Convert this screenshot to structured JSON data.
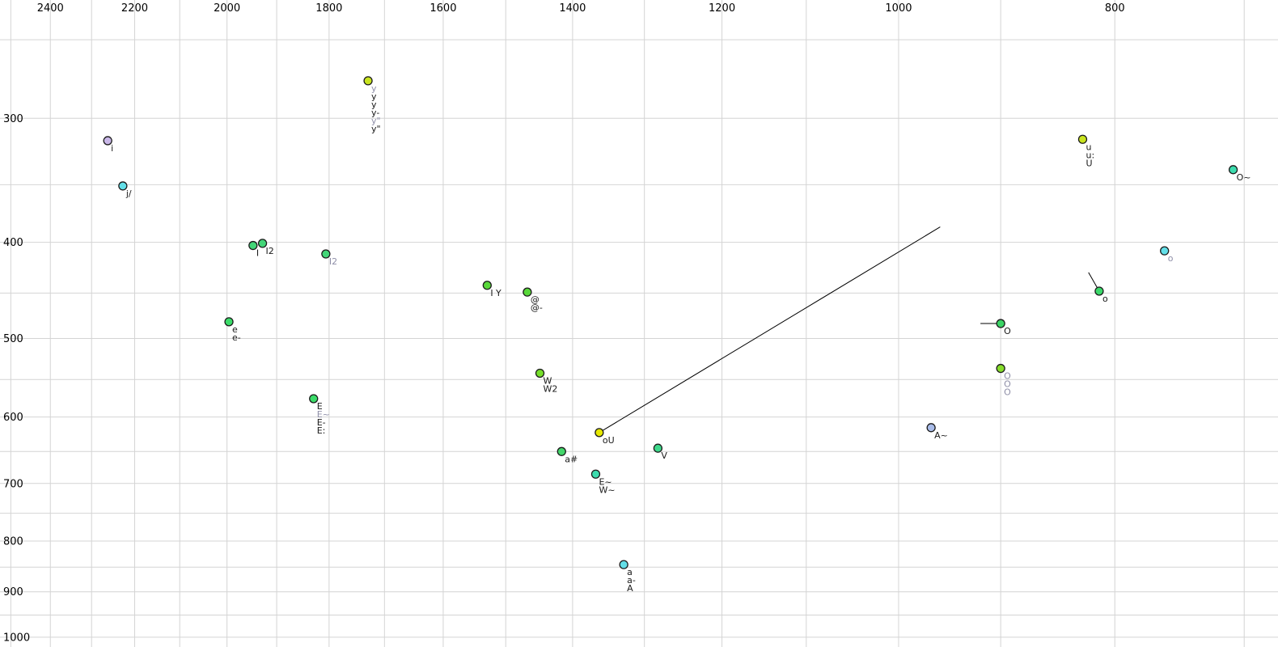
{
  "chart_data": {
    "type": "scatter",
    "title": "",
    "xlabel": "",
    "ylabel": "",
    "x_axis": {
      "unit": "Hz",
      "scale": "log",
      "reversed": true,
      "tick_labels": [
        "2400",
        "2200",
        "2000",
        "1800",
        "1600",
        "1400",
        "1200",
        "1000",
        "800"
      ],
      "tick_values": [
        2400,
        2200,
        2000,
        1800,
        1600,
        1400,
        1200,
        1000,
        800
      ],
      "grid_step": 100,
      "grid_from": 2500,
      "grid_to": 700,
      "left_hz": 2528,
      "right_hz": 676
    },
    "y_axis": {
      "unit": "Hz",
      "scale": "log",
      "reversed": false,
      "tick_labels": [
        "300",
        "400",
        "500",
        "600",
        "700",
        "800",
        "900",
        "1000"
      ],
      "tick_values": [
        300,
        400,
        500,
        600,
        700,
        800,
        900,
        1000
      ],
      "grid_step": 50,
      "grid_from": 250,
      "grid_to": 1000,
      "top_hz": 228,
      "bottom_hz": 1023
    },
    "grid": true,
    "legend": "none",
    "colors": {
      "grid_line": "#d4d4d4",
      "tick_text": "#000000",
      "label_text": "#1a1a1a",
      "label_text_gray": "#8f8fa8",
      "point_stroke": "#1c1c1c",
      "segment_line": "#000000"
    },
    "points": [
      {
        "f2": 2262,
        "f1": 316,
        "color": "#c9b7e8",
        "labels": [
          {
            "text": "i",
            "gray": false
          }
        ]
      },
      {
        "f2": 2227,
        "f1": 351,
        "color": "#63dfe8",
        "labels": [
          {
            "text": "j/",
            "gray": false
          }
        ]
      },
      {
        "f2": 1729,
        "f1": 275,
        "color": "#c9e41f",
        "labels": [
          {
            "text": "y",
            "gray": true
          },
          {
            "text": "y",
            "gray": false
          },
          {
            "text": "y",
            "gray": false
          },
          {
            "text": "y-",
            "gray": false
          },
          {
            "text": "y\"",
            "gray": true
          },
          {
            "text": "y\"",
            "gray": false
          }
        ]
      },
      {
        "f2": 1947,
        "f1": 403,
        "color": "#43d678",
        "labels": [
          {
            "text": "I",
            "gray": false
          }
        ]
      },
      {
        "f2": 1928,
        "f1": 401,
        "color": "#43d678",
        "labels": [
          {
            "text": "I2",
            "gray": false
          }
        ]
      },
      {
        "f2": 1806,
        "f1": 411,
        "color": "#43d678",
        "labels": [
          {
            "text": "I2",
            "gray": true
          }
        ]
      },
      {
        "f2": 1996,
        "f1": 481,
        "color": "#3bdc69",
        "labels": [
          {
            "text": "e",
            "gray": false
          },
          {
            "text": "e-",
            "gray": false
          }
        ]
      },
      {
        "f2": 1829,
        "f1": 575,
        "color": "#3bdc69",
        "labels": [
          {
            "text": "E",
            "gray": false
          },
          {
            "text": "E~",
            "gray": true
          },
          {
            "text": "E-",
            "gray": false
          },
          {
            "text": "E:",
            "gray": false
          }
        ]
      },
      {
        "f2": 1529,
        "f1": 442,
        "color": "#58d83a",
        "inline": true,
        "labels": [
          {
            "text": "I",
            "gray": false
          },
          {
            "text": "Y",
            "gray": false
          }
        ]
      },
      {
        "f2": 1467,
        "f1": 449,
        "color": "#58d83a",
        "labels": [
          {
            "text": "@",
            "gray": false
          },
          {
            "text": "@-",
            "gray": false
          }
        ]
      },
      {
        "f2": 1448,
        "f1": 542,
        "color": "#76df2b",
        "labels": [
          {
            "text": "W",
            "gray": false
          },
          {
            "text": "W2",
            "gray": false
          }
        ]
      },
      {
        "f2": 1416,
        "f1": 650,
        "color": "#43d66b",
        "labels": [
          {
            "text": "a#",
            "gray": false
          }
        ]
      },
      {
        "f2": 1362,
        "f1": 622,
        "color": "#e6e800",
        "labels": [
          {
            "text": "oU",
            "gray": false
          }
        ]
      },
      {
        "f2": 1282,
        "f1": 645,
        "color": "#3ed98b",
        "labels": [
          {
            "text": "V",
            "gray": false
          }
        ]
      },
      {
        "f2": 1367,
        "f1": 685,
        "color": "#3cdcae",
        "labels": [
          {
            "text": "E~",
            "gray": false
          },
          {
            "text": "W~",
            "gray": false
          }
        ]
      },
      {
        "f2": 1328,
        "f1": 845,
        "color": "#63dfe8",
        "labels": [
          {
            "text": "a",
            "gray": false
          },
          {
            "text": "a-",
            "gray": false
          },
          {
            "text": "A",
            "gray": false
          }
        ]
      },
      {
        "f2": 967,
        "f1": 615,
        "color": "#a9bce9",
        "labels": [
          {
            "text": "A~",
            "gray": false
          }
        ]
      },
      {
        "f2": 827,
        "f1": 315,
        "color": "#c9e41f",
        "labels": [
          {
            "text": "u",
            "gray": false
          },
          {
            "text": "u:",
            "gray": false
          },
          {
            "text": "U",
            "gray": false
          }
        ]
      },
      {
        "f2": 708,
        "f1": 338,
        "color": "#3cdcae",
        "labels": [
          {
            "text": "O~",
            "gray": false
          }
        ]
      },
      {
        "f2": 760,
        "f1": 408,
        "color": "#63dfe8",
        "labels": [
          {
            "text": "o",
            "gray": true
          }
        ]
      },
      {
        "f2": 813,
        "f1": 448,
        "color": "#3bd96a",
        "labels": [
          {
            "text": "o",
            "gray": false
          }
        ]
      },
      {
        "f2": 900,
        "f1": 483,
        "color": "#3bd465",
        "labels": [
          {
            "text": "O",
            "gray": false
          }
        ]
      },
      {
        "f2": 900,
        "f1": 536,
        "color": "#86dd2b",
        "labels": [
          {
            "text": "O",
            "gray": true
          },
          {
            "text": "O",
            "gray": true
          },
          {
            "text": "O",
            "gray": true
          }
        ]
      }
    ],
    "segments": [
      {
        "from_f2": 1362,
        "from_f1": 622,
        "to_f2": 958,
        "to_f1": 386
      },
      {
        "from_f2": 822,
        "from_f1": 429,
        "to_f2": 813,
        "to_f1": 448
      },
      {
        "from_f2": 919,
        "from_f1": 483,
        "to_f2": 900,
        "to_f1": 483
      }
    ],
    "point_radius": 5,
    "label_font_px": 11,
    "label_line_height_px": 10,
    "tick_font_px": 13
  }
}
